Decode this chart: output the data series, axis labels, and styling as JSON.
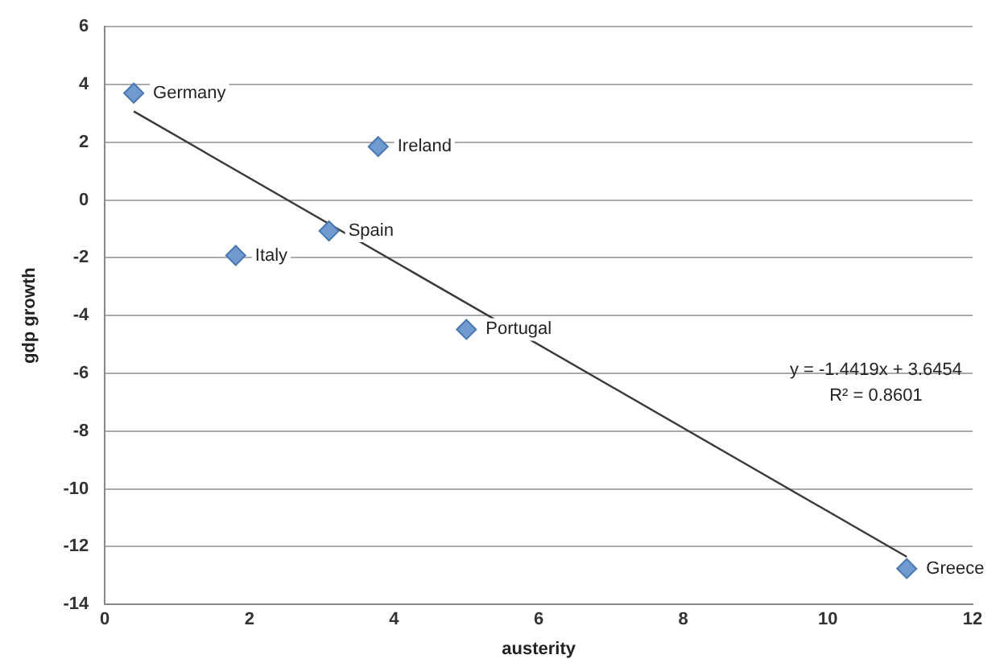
{
  "chart_data": {
    "type": "scatter",
    "xlabel": "austerity",
    "ylabel": "gdp growth",
    "xlim": [
      0,
      12
    ],
    "xticks": [
      0,
      2,
      4,
      6,
      8,
      10,
      12
    ],
    "ylim": [
      -14,
      6
    ],
    "yticks": [
      -14,
      -12,
      -10,
      -8,
      -6,
      -4,
      -2,
      0,
      2,
      4,
      6
    ],
    "grid": "y",
    "legend": false,
    "marker": "diamond",
    "series": [
      {
        "color": "#6f9bd1",
        "x": [
          0.4,
          3.78,
          3.1,
          1.81,
          5.0,
          11.09
        ],
        "values": [
          3.7,
          1.85,
          -1.07,
          -1.92,
          -4.48,
          -12.76
        ]
      },
      {
        "type": "line",
        "marker": "none",
        "color": "#3a3a3a",
        "x": [
          0.4,
          11.09
        ],
        "values": [
          3.07,
          -12.35
        ]
      }
    ],
    "annotations": [
      {
        "text": "Germany",
        "x": 0.4,
        "y": 3.7
      },
      {
        "text": "Ireland",
        "x": 3.78,
        "y": 1.85
      },
      {
        "text": "Spain",
        "x": 3.1,
        "y": -1.07
      },
      {
        "text": "Italy",
        "x": 1.81,
        "y": -1.92
      },
      {
        "text": "Portugal",
        "x": 5.0,
        "y": -4.48
      },
      {
        "text": "Greece",
        "x": 11.09,
        "y": -12.76
      },
      "y = -1.4419x + 3.6454",
      "R² = 0.8601"
    ]
  }
}
